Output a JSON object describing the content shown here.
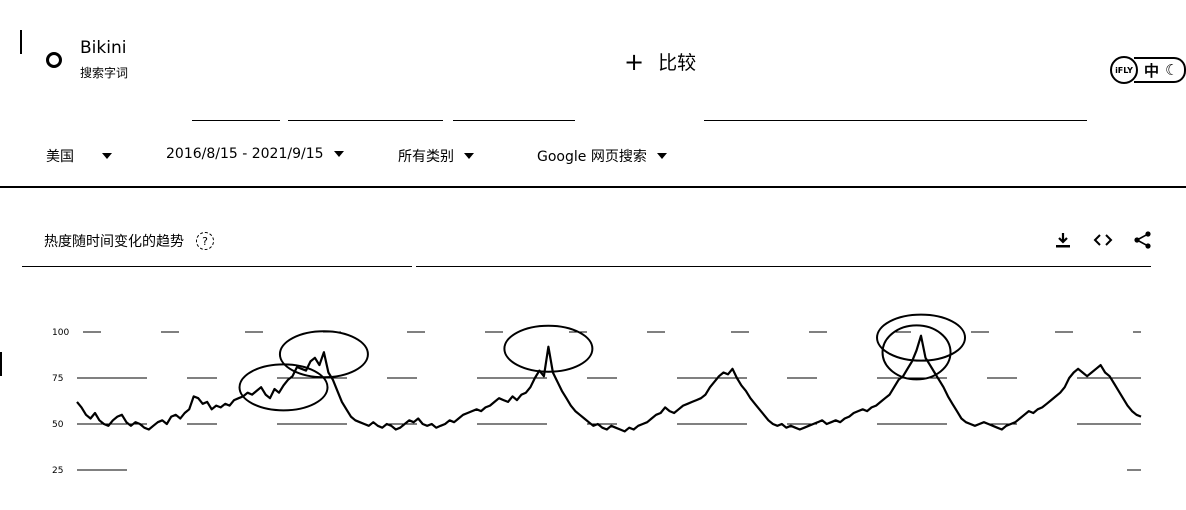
{
  "term": {
    "name": "Bikini",
    "subtitle": "搜索字词"
  },
  "compare": {
    "plus": "+",
    "label": "比较"
  },
  "extension": {
    "logo": "iFLY",
    "lang": "中",
    "moon": "☾"
  },
  "filters": {
    "region": "美国",
    "date_range": "2016/8/15 - 2021/9/15",
    "category": "所有类别",
    "search_type": "Google 网页搜索"
  },
  "card": {
    "title": "热度随时间变化的趋势",
    "help_icon": "?"
  },
  "icons": {
    "download": "download-icon",
    "embed": "embed-icon",
    "share": "share-icon"
  },
  "chart_data": {
    "type": "line",
    "x_start": "2016/8/15",
    "x_end": "2021/9/15",
    "y_ticks": [
      "100",
      "75",
      "50",
      "25"
    ],
    "ylim": [
      25,
      100
    ],
    "series": [
      {
        "values": [
          62,
          59,
          55,
          53,
          56,
          52,
          50,
          49,
          52,
          54,
          55,
          51,
          49,
          51,
          50,
          48,
          47,
          49,
          51,
          52,
          50,
          54,
          55,
          53,
          56,
          58,
          65,
          64,
          61,
          62,
          58,
          60,
          59,
          61,
          60,
          63,
          64,
          65,
          67,
          66,
          68,
          70,
          66,
          64,
          69,
          67,
          71,
          74,
          76,
          81,
          80,
          79,
          84,
          86,
          82,
          89,
          78,
          74,
          68,
          62,
          58,
          54,
          52,
          51,
          50,
          49,
          51,
          49,
          48,
          50,
          49,
          47,
          48,
          50,
          52,
          51,
          53,
          50,
          49,
          50,
          48,
          49,
          50,
          52,
          51,
          53,
          55,
          56,
          57,
          58,
          57,
          59,
          60,
          62,
          64,
          63,
          62,
          65,
          63,
          66,
          67,
          70,
          75,
          79,
          76,
          92,
          78,
          73,
          68,
          64,
          60,
          57,
          55,
          53,
          51,
          49,
          50,
          48,
          47,
          49,
          48,
          47,
          46,
          48,
          47,
          49,
          50,
          51,
          53,
          55,
          56,
          59,
          57,
          56,
          58,
          60,
          61,
          62,
          63,
          64,
          66,
          70,
          73,
          76,
          78,
          77,
          80,
          75,
          71,
          68,
          64,
          61,
          58,
          55,
          52,
          50,
          49,
          50,
          48,
          49,
          48,
          47,
          48,
          49,
          50,
          51,
          52,
          50,
          51,
          52,
          51,
          53,
          54,
          56,
          57,
          58,
          57,
          59,
          60,
          62,
          64,
          66,
          70,
          74,
          76,
          80,
          84,
          90,
          98,
          86,
          82,
          78,
          74,
          70,
          65,
          61,
          57,
          53,
          51,
          50,
          49,
          50,
          51,
          50,
          49,
          48,
          47,
          49,
          50,
          51,
          53,
          55,
          57,
          56,
          58,
          59,
          61,
          63,
          65,
          67,
          70,
          75,
          78,
          80,
          78,
          76,
          78,
          80,
          82,
          78,
          76,
          72,
          68,
          64,
          60,
          57,
          55,
          54
        ]
      }
    ]
  },
  "colors": {
    "line": "#000000",
    "ink": "#000000",
    "background": "#ffffff"
  }
}
